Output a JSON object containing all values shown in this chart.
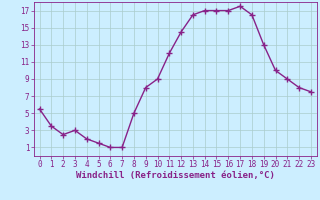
{
  "x": [
    0,
    1,
    2,
    3,
    4,
    5,
    6,
    7,
    8,
    9,
    10,
    11,
    12,
    13,
    14,
    15,
    16,
    17,
    18,
    19,
    20,
    21,
    22,
    23
  ],
  "y": [
    5.5,
    3.5,
    2.5,
    3.0,
    2.0,
    1.5,
    1.0,
    1.0,
    5.0,
    8.0,
    9.0,
    12.0,
    14.5,
    16.5,
    17.0,
    17.0,
    17.0,
    17.5,
    16.5,
    13.0,
    10.0,
    9.0,
    8.0,
    7.5
  ],
  "line_color": "#882288",
  "marker": "+",
  "marker_size": 4,
  "xlabel": "Windchill (Refroidissement éolien,°C)",
  "xlim_min": -0.5,
  "xlim_max": 23.5,
  "ylim_min": 0,
  "ylim_max": 18,
  "yticks": [
    1,
    3,
    5,
    7,
    9,
    11,
    13,
    15,
    17
  ],
  "xticks": [
    0,
    1,
    2,
    3,
    4,
    5,
    6,
    7,
    8,
    9,
    10,
    11,
    12,
    13,
    14,
    15,
    16,
    17,
    18,
    19,
    20,
    21,
    22,
    23
  ],
  "bg_color": "#cceeff",
  "grid_color": "#aacccc",
  "label_color": "#882288",
  "tick_color": "#882288",
  "tick_font_size": 5.5,
  "xlabel_font_size": 6.5,
  "line_width": 1.0
}
